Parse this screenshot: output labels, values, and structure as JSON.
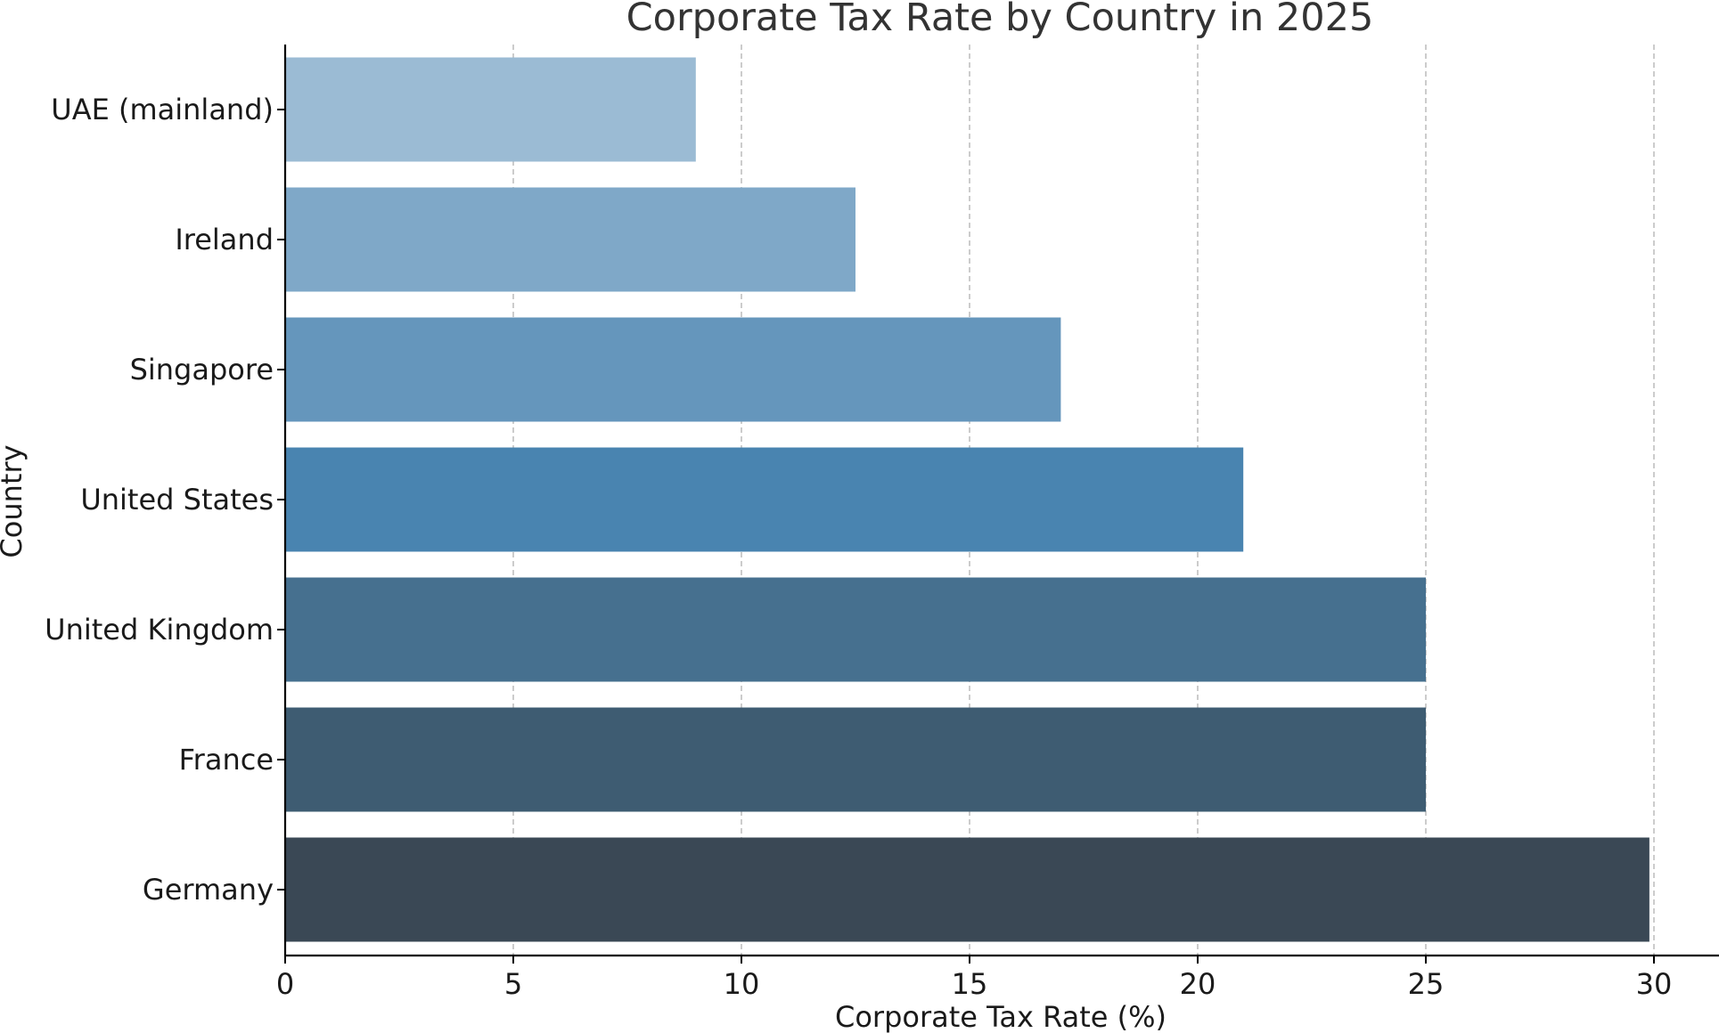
{
  "chart_data": {
    "type": "bar",
    "orientation": "horizontal",
    "title": "Corporate Tax Rate by Country in 2025",
    "xlabel": "Corporate Tax Rate (%)",
    "ylabel": "Country",
    "xlim": [
      0,
      31.5
    ],
    "xticks": [
      0,
      5,
      10,
      15,
      20,
      25,
      30
    ],
    "grid": "x-dashed",
    "categories": [
      "UAE (mainland)",
      "Ireland",
      "Singapore",
      "United States",
      "United Kingdom",
      "France",
      "Germany"
    ],
    "values": [
      9,
      12.5,
      17,
      21,
      25,
      25,
      29.9
    ],
    "colors": [
      "#9bbbd4",
      "#7fa8c8",
      "#6596bc",
      "#4984b0",
      "#46708f",
      "#3e5c72",
      "#3a4855"
    ]
  }
}
